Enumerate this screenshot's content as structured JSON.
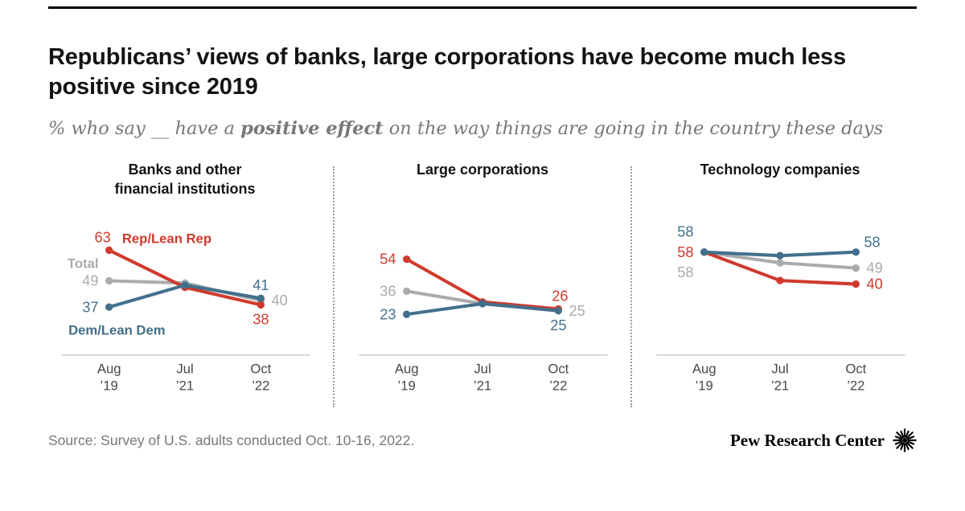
{
  "header": {
    "title": "Republicans’ views of banks, large corporations have become much less positive since 2019",
    "subtitle": {
      "prefix": "% who say __ have a ",
      "bold": "positive effect",
      "suffix": " on the way things are going in the country these days"
    }
  },
  "colors": {
    "rep": "#cf3a2d",
    "dem": "#41708c",
    "total": "#a9abae",
    "axis": "#cbcdd0",
    "tick_label": "#46474a"
  },
  "chart_data": [
    {
      "type": "line",
      "title": "Banks and other financial institutions",
      "title_lines": [
        "Banks and other",
        "financial institutions"
      ],
      "x": [
        "Aug ’19",
        "Jul ’21",
        "Oct ’22"
      ],
      "x_tick_lines": [
        [
          "Aug",
          "’19"
        ],
        [
          "Jul",
          "’21"
        ],
        [
          "Oct",
          "’22"
        ]
      ],
      "ylim": [
        15,
        80
      ],
      "grid": false,
      "series": [
        {
          "name": "Total",
          "color": "total",
          "values": [
            49,
            48,
            40
          ],
          "point_labels": [
            {
              "point": 0,
              "text": "49",
              "dx": -13,
              "dy": 6,
              "anchor": "end"
            },
            {
              "point": 2,
              "text": "40",
              "dx": 13,
              "dy": 6,
              "anchor": "start"
            }
          ],
          "name_label": {
            "point": 0,
            "dx": -13,
            "dy": -16,
            "anchor": "end"
          }
        },
        {
          "name": "Rep/Lean Rep",
          "color": "rep",
          "values": [
            63,
            46,
            38
          ],
          "point_labels": [
            {
              "point": 0,
              "text": "63",
              "dx": -8,
              "dy": -10,
              "anchor": "middle"
            },
            {
              "point": 2,
              "text": "38",
              "dx": 0,
              "dy": 24,
              "anchor": "middle"
            }
          ],
          "name_label": {
            "point": 0,
            "dx": 16,
            "dy": -9,
            "anchor": "start"
          }
        },
        {
          "name": "Dem/Lean Dem",
          "color": "dem",
          "values": [
            37,
            47,
            41
          ],
          "point_labels": [
            {
              "point": 0,
              "text": "37",
              "dx": -13,
              "dy": 6,
              "anchor": "end"
            },
            {
              "point": 2,
              "text": "41",
              "dx": 0,
              "dy": -10,
              "anchor": "middle"
            }
          ],
          "name_label": {
            "point": 0,
            "dx": -50,
            "dy": 34,
            "anchor": "start"
          }
        }
      ]
    },
    {
      "type": "line",
      "title": "Large corporations",
      "title_lines": [
        "Large corporations"
      ],
      "x": [
        "Aug ’19",
        "Jul ’21",
        "Oct ’22"
      ],
      "x_tick_lines": [
        [
          "Aug",
          "’19"
        ],
        [
          "Jul",
          "’21"
        ],
        [
          "Oct",
          "’22"
        ]
      ],
      "ylim": [
        0,
        80
      ],
      "grid": false,
      "series": [
        {
          "name": "Total",
          "color": "total",
          "values": [
            36,
            29,
            25
          ],
          "point_labels": [
            {
              "point": 0,
              "text": "36",
              "dx": -13,
              "dy": 6,
              "anchor": "end"
            },
            {
              "point": 2,
              "text": "25",
              "dx": 13,
              "dy": 6,
              "anchor": "start"
            }
          ]
        },
        {
          "name": "Rep/Lean Rep",
          "color": "rep",
          "values": [
            54,
            30,
            26
          ],
          "point_labels": [
            {
              "point": 0,
              "text": "54",
              "dx": -13,
              "dy": 6,
              "anchor": "end"
            },
            {
              "point": 2,
              "text": "26",
              "dx": 2,
              "dy": -10,
              "anchor": "middle"
            }
          ]
        },
        {
          "name": "Dem/Lean Dem",
          "color": "dem",
          "values": [
            23,
            29,
            25
          ],
          "point_labels": [
            {
              "point": 0,
              "text": "23",
              "dx": -13,
              "dy": 6,
              "anchor": "end"
            },
            {
              "point": 2,
              "text": "25",
              "dx": 0,
              "dy": 24,
              "anchor": "middle"
            }
          ]
        }
      ]
    },
    {
      "type": "line",
      "title": "Technology companies",
      "title_lines": [
        "Technology companies"
      ],
      "x": [
        "Aug ’19",
        "Jul ’21",
        "Oct ’22"
      ],
      "x_tick_lines": [
        [
          "Aug",
          "’19"
        ],
        [
          "Jul",
          "’21"
        ],
        [
          "Oct",
          "’22"
        ]
      ],
      "ylim": [
        0,
        80
      ],
      "grid": false,
      "series": [
        {
          "name": "Total",
          "color": "total",
          "values": [
            58,
            52,
            49
          ],
          "point_labels": [
            {
              "point": 0,
              "text": "58",
              "dx": -13,
              "dy": 31,
              "anchor": "end"
            },
            {
              "point": 2,
              "text": "49",
              "dx": 13,
              "dy": 6,
              "anchor": "start"
            }
          ]
        },
        {
          "name": "Rep/Lean Rep",
          "color": "rep",
          "values": [
            58,
            42,
            40
          ],
          "point_labels": [
            {
              "point": 0,
              "text": "58",
              "dx": -13,
              "dy": 6,
              "anchor": "end"
            },
            {
              "point": 2,
              "text": "40",
              "dx": 13,
              "dy": 6,
              "anchor": "start"
            }
          ]
        },
        {
          "name": "Dem/Lean Dem",
          "color": "dem",
          "values": [
            58,
            56,
            58
          ],
          "point_labels": [
            {
              "point": 0,
              "text": "58",
              "dx": -13,
              "dy": -19,
              "anchor": "end"
            },
            {
              "point": 2,
              "text": "58",
              "dx": 10,
              "dy": -6,
              "anchor": "start"
            }
          ]
        }
      ]
    }
  ],
  "footer": {
    "source": "Source: Survey of U.S. adults conducted Oct. 10-16, 2022.",
    "brand": "Pew Research Center"
  }
}
